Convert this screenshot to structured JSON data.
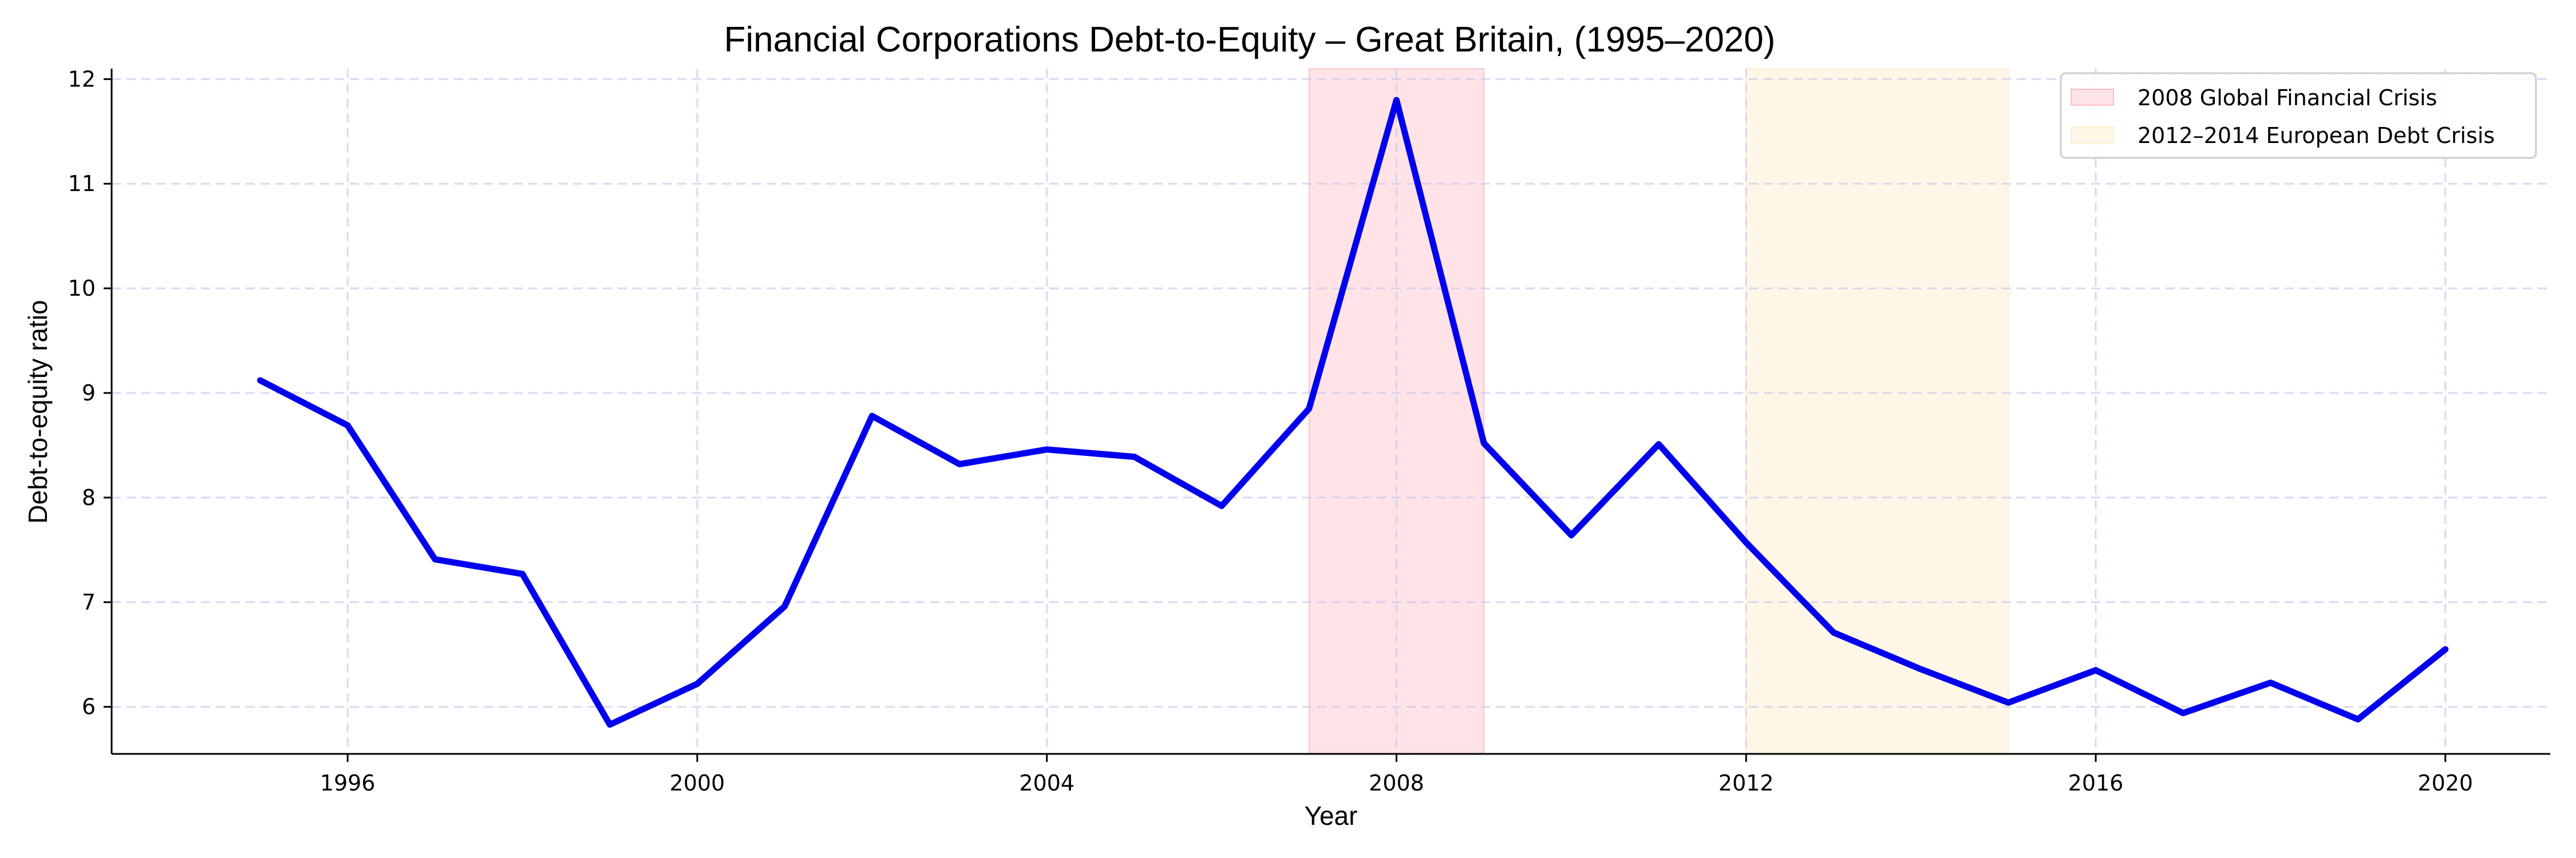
{
  "chart_data": {
    "type": "line",
    "title": "Financial Corporations Debt-to-Equity – Great Britain, (1995–2020)",
    "xlabel": "Year",
    "ylabel": "Debt-to-equity ratio",
    "xlim": [
      1993.3,
      2021.2
    ],
    "ylim": [
      5.55,
      12.1
    ],
    "xticks": [
      1996,
      2000,
      2004,
      2008,
      2012,
      2016,
      2020
    ],
    "yticks": [
      6,
      7,
      8,
      9,
      10,
      11,
      12
    ],
    "grid": true,
    "legend_position": "top-right",
    "series": [
      {
        "color": "#0000ee",
        "x": [
          1995,
          1996,
          1997,
          1998,
          1999,
          2000,
          2001,
          2002,
          2003,
          2004,
          2005,
          2006,
          2007,
          2008,
          2009,
          2010,
          2011,
          2012,
          2013,
          2014,
          2015,
          2016,
          2017,
          2018,
          2019,
          2020
        ],
        "y": [
          9.12,
          8.69,
          7.41,
          7.27,
          5.83,
          6.22,
          6.96,
          8.78,
          8.32,
          8.46,
          8.39,
          7.92,
          8.85,
          11.8,
          8.52,
          7.64,
          8.51,
          7.57,
          6.71,
          6.36,
          6.04,
          6.35,
          5.94,
          6.23,
          5.88,
          6.55
        ]
      }
    ],
    "shaded_regions": [
      {
        "label": "2008 Global Financial Crisis",
        "x_start": 2007,
        "x_end": 2009,
        "color": "#ff9aa6"
      },
      {
        "label": "2012–2014 European Debt Crisis",
        "x_start": 2012,
        "x_end": 2015,
        "color": "#fde2ad"
      }
    ]
  }
}
